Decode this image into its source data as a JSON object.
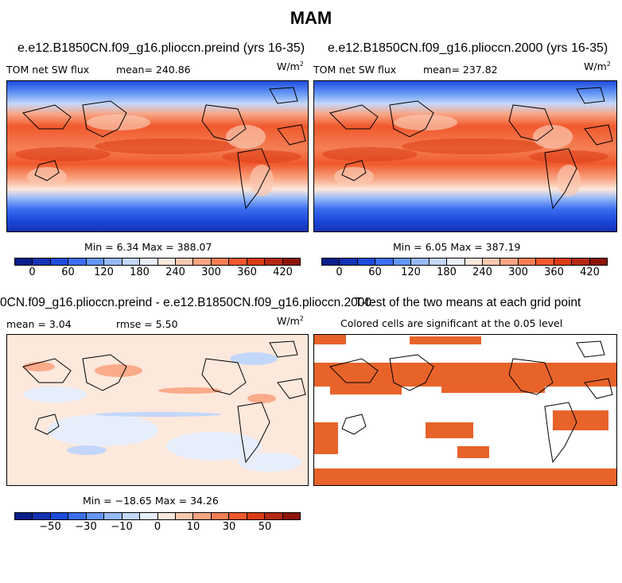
{
  "main_title": "MAM",
  "panels": {
    "top_left": {
      "case": "e.e12.B1850CN.f09_g16.plioccn.preind (yrs 16-35)",
      "variable": "TOM net SW flux",
      "mean_label": "mean= 240.86",
      "units": "W/m",
      "units_sup": "2",
      "minmax": "Min =    6.34  Max = 388.07"
    },
    "top_right": {
      "case": "e.e12.B1850CN.f09_g16.plioccn.2000 (yrs 16-35)",
      "variable": "TOM net SW flux",
      "mean_label": "mean= 237.82",
      "units": "W/m",
      "units_sup": "2",
      "minmax": "Min =    6.05  Max = 387.19"
    },
    "bottom_left": {
      "case": "0CN.f09_g16.plioccn.preind - e.e12.B1850CN.f09_g16.plioccn.2000",
      "mean_label": "mean =    3.04",
      "rmse_label": "rmse =   5.50",
      "units": "W/m",
      "units_sup": "2",
      "minmax": "Min = −18.65  Max =  34.26"
    },
    "bottom_right": {
      "title": "T-test of the two means at each grid point",
      "subtitle": "Colored cells are significant at the 0.05 level",
      "sig_color": "#e8632a"
    }
  },
  "colorbars": {
    "abs_colors": [
      "#0a1e8c",
      "#1432b4",
      "#1e4bdc",
      "#3c6ef0",
      "#6496f5",
      "#96b9f8",
      "#c3d7fa",
      "#e6eefc",
      "#fde8dc",
      "#fbc8b0",
      "#f9a582",
      "#f57f55",
      "#f0592d",
      "#dc3c14",
      "#b42814",
      "#8c1408"
    ],
    "abs_ticks": [
      "0",
      "60",
      "120",
      "180",
      "240",
      "300",
      "360",
      "420"
    ],
    "diff_colors": [
      "#0a1e8c",
      "#1432b4",
      "#1e4bdc",
      "#3c6ef0",
      "#6496f5",
      "#96b9f8",
      "#c3d7fa",
      "#e6eefc",
      "#fde8dc",
      "#fbc8b0",
      "#f9a582",
      "#f57f55",
      "#f0592d",
      "#dc3c14",
      "#b42814",
      "#8c1408"
    ],
    "diff_ticks": [
      "−50",
      "−30",
      "−10",
      "0",
      "10",
      "30",
      "50"
    ]
  }
}
